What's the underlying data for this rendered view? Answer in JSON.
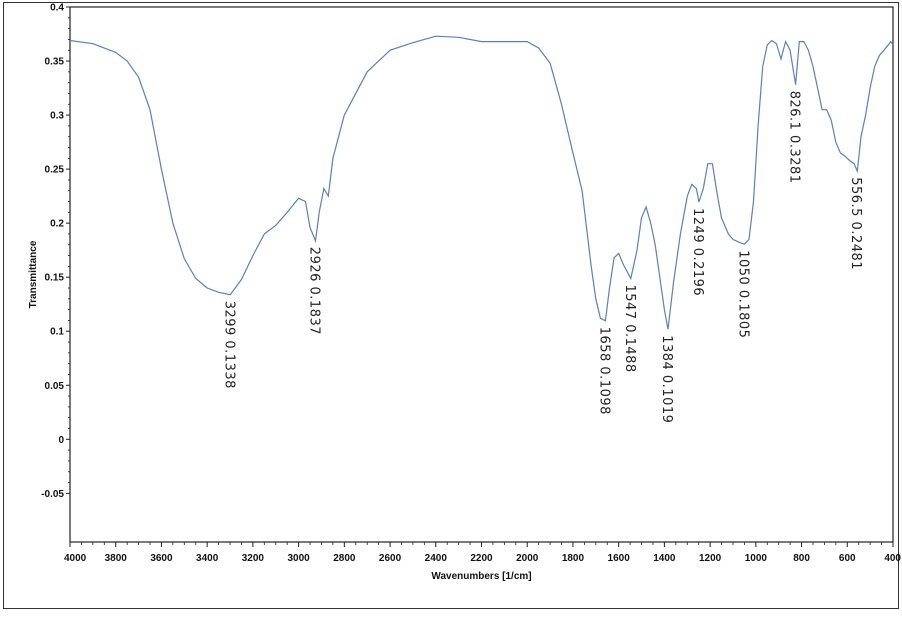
{
  "chart_data": {
    "type": "line",
    "title": "",
    "xlabel": "Wavenumbers [1/cm]",
    "ylabel": "Transmittance",
    "xlim": [
      4000,
      400
    ],
    "ylim": [
      -0.095,
      0.4
    ],
    "x_reversed": true,
    "grid": false,
    "legend": "none",
    "x_ticks": [
      4000,
      3800,
      3600,
      3400,
      3200,
      3000,
      2800,
      2600,
      2400,
      2200,
      2000,
      1800,
      1600,
      1400,
      1200,
      1000,
      800,
      600,
      400
    ],
    "x_tick_labels": [
      "4000",
      "3800",
      "3600",
      "3400",
      "3200",
      "3000",
      "2800",
      "2600",
      "2400",
      "2200",
      "2000",
      "1800",
      "1600",
      "1400",
      "1200",
      "1000",
      "800",
      "600",
      "400"
    ],
    "y_ticks": [
      0.4,
      0.35,
      0.3,
      0.25,
      0.2,
      0.15,
      0.1,
      0.05,
      0,
      -0.05
    ],
    "y_tick_labels": [
      "0.4",
      "0.35",
      "0.3",
      "0.25",
      "0.2",
      "0.15",
      "0.1",
      "0.05",
      "0",
      "-0.05"
    ],
    "series": [
      {
        "color": "#5b7fc0",
        "x": [
          4000,
          3900,
          3800,
          3750,
          3700,
          3650,
          3600,
          3550,
          3500,
          3450,
          3400,
          3350,
          3299,
          3250,
          3200,
          3150,
          3100,
          3050,
          3000,
          2970,
          2950,
          2926,
          2910,
          2890,
          2870,
          2850,
          2800,
          2700,
          2600,
          2500,
          2450,
          2400,
          2300,
          2200,
          2100,
          2000,
          1950,
          1900,
          1850,
          1800,
          1760,
          1720,
          1700,
          1680,
          1658,
          1640,
          1620,
          1600,
          1580,
          1547,
          1520,
          1500,
          1480,
          1460,
          1440,
          1420,
          1400,
          1384,
          1360,
          1330,
          1300,
          1280,
          1260,
          1249,
          1230,
          1210,
          1190,
          1170,
          1150,
          1120,
          1100,
          1070,
          1050,
          1030,
          1010,
          990,
          970,
          950,
          930,
          910,
          890,
          870,
          850,
          826,
          810,
          790,
          770,
          750,
          730,
          710,
          690,
          670,
          650,
          630,
          610,
          590,
          570,
          556,
          540,
          520,
          500,
          480,
          460,
          440,
          420,
          410,
          400
        ],
        "y": [
          0.369,
          0.366,
          0.358,
          0.35,
          0.335,
          0.305,
          0.25,
          0.2,
          0.167,
          0.149,
          0.14,
          0.136,
          0.1338,
          0.148,
          0.17,
          0.19,
          0.198,
          0.21,
          0.223,
          0.22,
          0.196,
          0.1837,
          0.21,
          0.232,
          0.225,
          0.26,
          0.3,
          0.34,
          0.36,
          0.367,
          0.37,
          0.373,
          0.372,
          0.368,
          0.368,
          0.368,
          0.362,
          0.348,
          0.31,
          0.265,
          0.23,
          0.16,
          0.13,
          0.112,
          0.1098,
          0.14,
          0.168,
          0.172,
          0.162,
          0.1488,
          0.175,
          0.205,
          0.215,
          0.2,
          0.18,
          0.15,
          0.12,
          0.1019,
          0.145,
          0.19,
          0.225,
          0.236,
          0.232,
          0.2196,
          0.232,
          0.255,
          0.255,
          0.228,
          0.205,
          0.19,
          0.185,
          0.182,
          0.1805,
          0.185,
          0.22,
          0.29,
          0.345,
          0.365,
          0.369,
          0.366,
          0.352,
          0.368,
          0.36,
          0.3281,
          0.368,
          0.368,
          0.36,
          0.345,
          0.325,
          0.305,
          0.305,
          0.295,
          0.275,
          0.265,
          0.262,
          0.258,
          0.255,
          0.2481,
          0.28,
          0.3,
          0.325,
          0.345,
          0.355,
          0.36,
          0.365,
          0.368,
          0.365
        ]
      }
    ],
    "peak_labels": [
      {
        "x": 3299,
        "y": 0.1338,
        "text": "3299 0.1338"
      },
      {
        "x": 2926,
        "y": 0.1837,
        "text": "2926 0.1837"
      },
      {
        "x": 1658,
        "y": 0.1098,
        "text": "1658 0.1098"
      },
      {
        "x": 1547,
        "y": 0.1488,
        "text": "1547 0.1488"
      },
      {
        "x": 1384,
        "y": 0.1019,
        "text": "1384 0.1019"
      },
      {
        "x": 1249,
        "y": 0.2196,
        "text": "1249 0.2196"
      },
      {
        "x": 1050,
        "y": 0.1805,
        "text": "1050 0.1805"
      },
      {
        "x": 826.1,
        "y": 0.3281,
        "text": "826.1 0.3281"
      },
      {
        "x": 556.5,
        "y": 0.2481,
        "text": "556.5 0.2481"
      }
    ]
  }
}
